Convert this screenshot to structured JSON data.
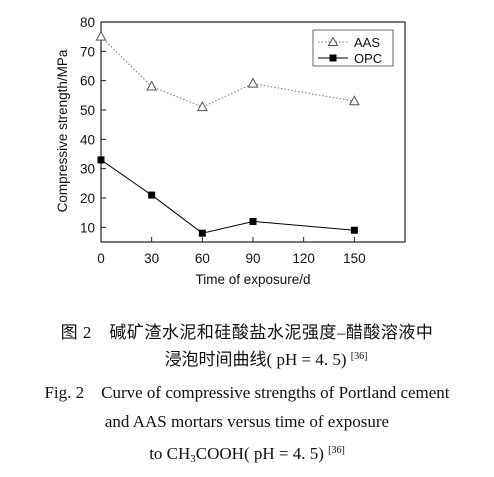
{
  "chart_data": {
    "type": "line",
    "xlabel": "Time of exposure/d",
    "ylabel": "Compressive strength/MPa",
    "x": [
      0,
      30,
      60,
      90,
      150
    ],
    "xticks": [
      "0",
      "30",
      "60",
      "90",
      "120",
      "150"
    ],
    "xtick_values": [
      0,
      30,
      60,
      90,
      120,
      150
    ],
    "yticks": [
      "10",
      "20",
      "30",
      "40",
      "50",
      "60",
      "70",
      "80"
    ],
    "ytick_values": [
      10,
      20,
      30,
      40,
      50,
      60,
      70,
      80
    ],
    "xlim": [
      0,
      180
    ],
    "ylim": [
      5,
      80
    ],
    "legend_position": "top-right",
    "grid": false,
    "series": [
      {
        "name": "AAS",
        "values": [
          75,
          58,
          51,
          59,
          53
        ],
        "marker": "open-triangle",
        "line": "dotted",
        "color": "#777777"
      },
      {
        "name": "OPC",
        "values": [
          33,
          21,
          8,
          12,
          9
        ],
        "marker": "filled-square",
        "line": "solid",
        "color": "#000000"
      }
    ]
  },
  "caption": {
    "zh_line1": "图 2　碱矿渣水泥和硅酸盐水泥强度–醋酸溶液中",
    "zh_line2": "浸泡时间曲线( pH = 4. 5)",
    "ref": "[36]",
    "en_line1": "Fig. 2　Curve of compressive strengths of Portland cement",
    "en_line2": "and AAS mortars versus time of exposure",
    "en_line3_pre": "to CH",
    "en_line3_sub": "3",
    "en_line3_post": "COOH( pH = 4. 5)"
  }
}
